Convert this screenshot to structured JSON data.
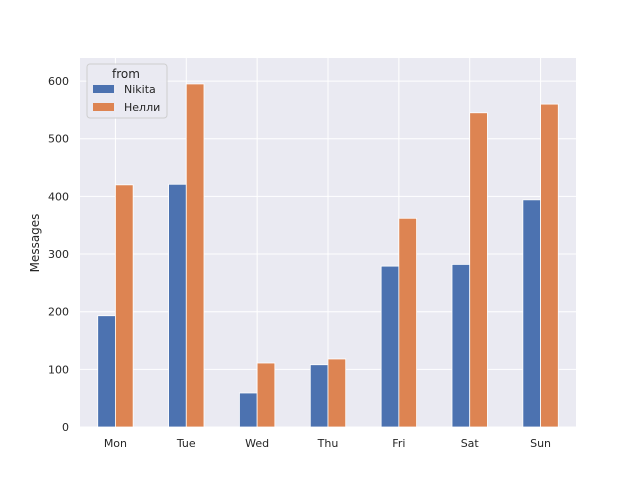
{
  "chart_data": {
    "type": "bar",
    "title": "",
    "xlabel": "",
    "ylabel": "Messages",
    "categories": [
      "Mon",
      "Tue",
      "Wed",
      "Thu",
      "Fri",
      "Sat",
      "Sun"
    ],
    "series": [
      {
        "name": "Nikita",
        "values": [
          193,
          421,
          59,
          108,
          279,
          282,
          394
        ],
        "color": "#4c72b0"
      },
      {
        "name": "Нелли",
        "values": [
          420,
          595,
          111,
          118,
          362,
          545,
          560
        ],
        "color": "#dd8452"
      }
    ],
    "ylim": [
      0,
      640
    ],
    "yticks": [
      0,
      100,
      200,
      300,
      400,
      500,
      600
    ],
    "grid": true,
    "legend": {
      "title": "from",
      "placement": "top-left"
    },
    "colors": {
      "plot_background": "#eaeaf2",
      "grid": "#ffffff",
      "text": "#262626"
    }
  }
}
